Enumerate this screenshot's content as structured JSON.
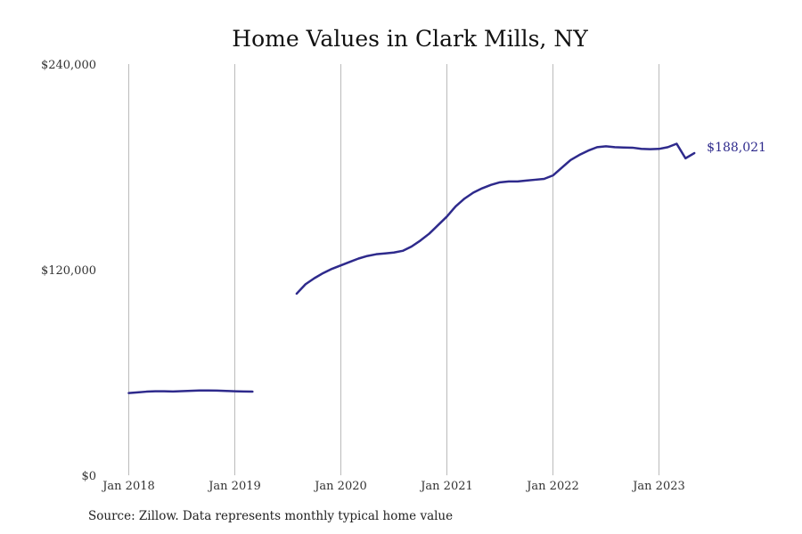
{
  "chart_data": {
    "type": "line",
    "title": "Home Values in Clark Mills, NY",
    "xlabel": "",
    "ylabel": "",
    "ylim": [
      0,
      240000
    ],
    "xlim": [
      "2018-01",
      "2023-12"
    ],
    "y_ticks": [
      {
        "value": 0,
        "label": "$0"
      },
      {
        "value": 120000,
        "label": "$120,000"
      },
      {
        "value": 240000,
        "label": "$240,000"
      }
    ],
    "x_ticks": [
      {
        "value": "2018-01",
        "label": "Jan 2018"
      },
      {
        "value": "2019-01",
        "label": "Jan 2019"
      },
      {
        "value": "2020-01",
        "label": "Jan 2020"
      },
      {
        "value": "2021-01",
        "label": "Jan 2021"
      },
      {
        "value": "2022-01",
        "label": "Jan 2022"
      },
      {
        "value": "2023-01",
        "label": "Jan 2023"
      }
    ],
    "grid": {
      "vertical": true,
      "horizontal": false
    },
    "line_color": "#2e2a8c",
    "grid_color": "#bbbbbb",
    "end_label": "$188,021",
    "series": [
      {
        "segments": [
          {
            "x": [
              "2018-01",
              "2018-02",
              "2018-03",
              "2018-04",
              "2018-05",
              "2018-06",
              "2018-07",
              "2018-08",
              "2018-09",
              "2018-10",
              "2018-11",
              "2018-12",
              "2019-01",
              "2019-02",
              "2019-03"
            ],
            "y": [
              48000,
              48400,
              48800,
              49000,
              49000,
              48900,
              49100,
              49300,
              49500,
              49500,
              49400,
              49200,
              49000,
              48900,
              48800
            ]
          },
          {
            "x": [
              "2019-08",
              "2019-09",
              "2019-10",
              "2019-11",
              "2019-12",
              "2020-01",
              "2020-02",
              "2020-03",
              "2020-04",
              "2020-05",
              "2020-06",
              "2020-07",
              "2020-08",
              "2020-09",
              "2020-10",
              "2020-11",
              "2020-12",
              "2021-01",
              "2021-02",
              "2021-03",
              "2021-04",
              "2021-05",
              "2021-06",
              "2021-07",
              "2021-08",
              "2021-09",
              "2021-10",
              "2021-11",
              "2021-12",
              "2022-01",
              "2022-02",
              "2022-03",
              "2022-04",
              "2022-05",
              "2022-06",
              "2022-07",
              "2022-08",
              "2022-09",
              "2022-10",
              "2022-11",
              "2022-12",
              "2023-01",
              "2023-02",
              "2023-03",
              "2023-04",
              "2023-05"
            ],
            "y": [
              106000,
              111500,
              115000,
              118000,
              120500,
              122500,
              124500,
              126500,
              128000,
              129000,
              129500,
              130000,
              131000,
              133500,
              137000,
              141000,
              146000,
              151000,
              157000,
              161500,
              165000,
              167500,
              169500,
              171000,
              171500,
              171500,
              172000,
              172500,
              173000,
              175000,
              179500,
              184000,
              187000,
              189500,
              191500,
              192000,
              191500,
              191300,
              191200,
              190500,
              190300,
              190500,
              191500,
              193500,
              185000,
              188021
            ]
          }
        ]
      }
    ]
  },
  "source": {
    "text": "Source: Zillow. Data represents monthly typical home value"
  }
}
